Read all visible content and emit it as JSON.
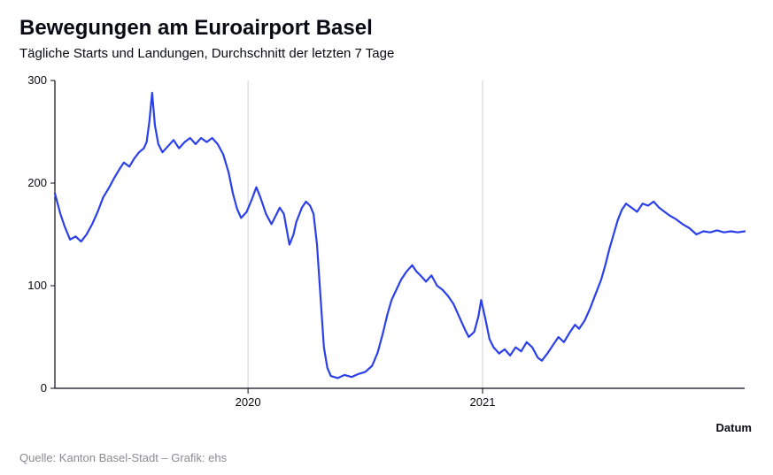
{
  "title": "Bewegungen am Euroairport Basel",
  "subtitle": "Tägliche Starts und Landungen, Durchschnitt der letzten 7 Tage",
  "credit": "Quelle: Kanton Basel-Stadt – Grafik: ehs",
  "xaxis_title": "Datum",
  "chart": {
    "type": "line",
    "line_color": "#2b40e8",
    "line_width": 2.2,
    "background_color": "#ffffff",
    "axis_color": "#0a0a14",
    "grid_color": "#cfcfd4",
    "tick_fontsize": 13,
    "title_fontsize": 24,
    "title_fontweight": 700,
    "subtitle_fontsize": 15,
    "credit_color": "#8a8a94",
    "xlim": [
      0,
      1000
    ],
    "ylim": [
      0,
      300
    ],
    "yticks": [
      0,
      100,
      200,
      300
    ],
    "xticks": [
      {
        "pos": 280,
        "label": "2020"
      },
      {
        "pos": 620,
        "label": "2021"
      }
    ],
    "series": [
      {
        "x": 0,
        "y": 190
      },
      {
        "x": 8,
        "y": 170
      },
      {
        "x": 14,
        "y": 158
      },
      {
        "x": 22,
        "y": 145
      },
      {
        "x": 30,
        "y": 148
      },
      {
        "x": 38,
        "y": 143
      },
      {
        "x": 46,
        "y": 150
      },
      {
        "x": 54,
        "y": 160
      },
      {
        "x": 62,
        "y": 172
      },
      {
        "x": 70,
        "y": 186
      },
      {
        "x": 78,
        "y": 195
      },
      {
        "x": 86,
        "y": 205
      },
      {
        "x": 94,
        "y": 214
      },
      {
        "x": 100,
        "y": 220
      },
      {
        "x": 108,
        "y": 216
      },
      {
        "x": 115,
        "y": 224
      },
      {
        "x": 122,
        "y": 230
      },
      {
        "x": 129,
        "y": 234
      },
      {
        "x": 133,
        "y": 240
      },
      {
        "x": 137,
        "y": 260
      },
      {
        "x": 141,
        "y": 288
      },
      {
        "x": 145,
        "y": 256
      },
      {
        "x": 150,
        "y": 238
      },
      {
        "x": 156,
        "y": 230
      },
      {
        "x": 164,
        "y": 236
      },
      {
        "x": 172,
        "y": 242
      },
      {
        "x": 180,
        "y": 234
      },
      {
        "x": 188,
        "y": 240
      },
      {
        "x": 196,
        "y": 244
      },
      {
        "x": 204,
        "y": 238
      },
      {
        "x": 212,
        "y": 244
      },
      {
        "x": 220,
        "y": 240
      },
      {
        "x": 228,
        "y": 244
      },
      {
        "x": 236,
        "y": 238
      },
      {
        "x": 244,
        "y": 228
      },
      {
        "x": 252,
        "y": 210
      },
      {
        "x": 258,
        "y": 190
      },
      {
        "x": 264,
        "y": 175
      },
      {
        "x": 270,
        "y": 166
      },
      {
        "x": 278,
        "y": 172
      },
      {
        "x": 286,
        "y": 185
      },
      {
        "x": 292,
        "y": 196
      },
      {
        "x": 298,
        "y": 186
      },
      {
        "x": 306,
        "y": 170
      },
      {
        "x": 314,
        "y": 160
      },
      {
        "x": 320,
        "y": 168
      },
      {
        "x": 326,
        "y": 176
      },
      {
        "x": 332,
        "y": 170
      },
      {
        "x": 340,
        "y": 140
      },
      {
        "x": 346,
        "y": 150
      },
      {
        "x": 350,
        "y": 162
      },
      {
        "x": 358,
        "y": 176
      },
      {
        "x": 364,
        "y": 182
      },
      {
        "x": 370,
        "y": 178
      },
      {
        "x": 375,
        "y": 170
      },
      {
        "x": 380,
        "y": 140
      },
      {
        "x": 385,
        "y": 90
      },
      {
        "x": 390,
        "y": 40
      },
      {
        "x": 395,
        "y": 20
      },
      {
        "x": 400,
        "y": 12
      },
      {
        "x": 410,
        "y": 10
      },
      {
        "x": 420,
        "y": 13
      },
      {
        "x": 430,
        "y": 11
      },
      {
        "x": 440,
        "y": 14
      },
      {
        "x": 450,
        "y": 16
      },
      {
        "x": 460,
        "y": 22
      },
      {
        "x": 468,
        "y": 35
      },
      {
        "x": 476,
        "y": 55
      },
      {
        "x": 482,
        "y": 72
      },
      {
        "x": 488,
        "y": 86
      },
      {
        "x": 495,
        "y": 96
      },
      {
        "x": 502,
        "y": 106
      },
      {
        "x": 510,
        "y": 114
      },
      {
        "x": 518,
        "y": 120
      },
      {
        "x": 524,
        "y": 114
      },
      {
        "x": 530,
        "y": 110
      },
      {
        "x": 538,
        "y": 104
      },
      {
        "x": 546,
        "y": 110
      },
      {
        "x": 554,
        "y": 100
      },
      {
        "x": 562,
        "y": 96
      },
      {
        "x": 570,
        "y": 90
      },
      {
        "x": 578,
        "y": 82
      },
      {
        "x": 586,
        "y": 70
      },
      {
        "x": 594,
        "y": 58
      },
      {
        "x": 600,
        "y": 50
      },
      {
        "x": 608,
        "y": 55
      },
      {
        "x": 614,
        "y": 70
      },
      {
        "x": 618,
        "y": 86
      },
      {
        "x": 624,
        "y": 68
      },
      {
        "x": 630,
        "y": 48
      },
      {
        "x": 636,
        "y": 40
      },
      {
        "x": 644,
        "y": 34
      },
      {
        "x": 652,
        "y": 38
      },
      {
        "x": 660,
        "y": 32
      },
      {
        "x": 668,
        "y": 40
      },
      {
        "x": 676,
        "y": 36
      },
      {
        "x": 684,
        "y": 45
      },
      {
        "x": 692,
        "y": 40
      },
      {
        "x": 700,
        "y": 30
      },
      {
        "x": 706,
        "y": 27
      },
      {
        "x": 714,
        "y": 34
      },
      {
        "x": 722,
        "y": 42
      },
      {
        "x": 730,
        "y": 50
      },
      {
        "x": 738,
        "y": 45
      },
      {
        "x": 746,
        "y": 54
      },
      {
        "x": 754,
        "y": 62
      },
      {
        "x": 760,
        "y": 58
      },
      {
        "x": 768,
        "y": 66
      },
      {
        "x": 776,
        "y": 78
      },
      {
        "x": 784,
        "y": 92
      },
      {
        "x": 792,
        "y": 106
      },
      {
        "x": 798,
        "y": 120
      },
      {
        "x": 804,
        "y": 136
      },
      {
        "x": 810,
        "y": 150
      },
      {
        "x": 816,
        "y": 164
      },
      {
        "x": 822,
        "y": 174
      },
      {
        "x": 828,
        "y": 180
      },
      {
        "x": 836,
        "y": 176
      },
      {
        "x": 844,
        "y": 172
      },
      {
        "x": 852,
        "y": 180
      },
      {
        "x": 860,
        "y": 178
      },
      {
        "x": 868,
        "y": 182
      },
      {
        "x": 876,
        "y": 176
      },
      {
        "x": 884,
        "y": 172
      },
      {
        "x": 892,
        "y": 168
      },
      {
        "x": 900,
        "y": 165
      },
      {
        "x": 910,
        "y": 160
      },
      {
        "x": 920,
        "y": 156
      },
      {
        "x": 930,
        "y": 150
      },
      {
        "x": 940,
        "y": 153
      },
      {
        "x": 950,
        "y": 152
      },
      {
        "x": 960,
        "y": 154
      },
      {
        "x": 970,
        "y": 152
      },
      {
        "x": 980,
        "y": 153
      },
      {
        "x": 990,
        "y": 152
      },
      {
        "x": 1000,
        "y": 153
      }
    ]
  }
}
